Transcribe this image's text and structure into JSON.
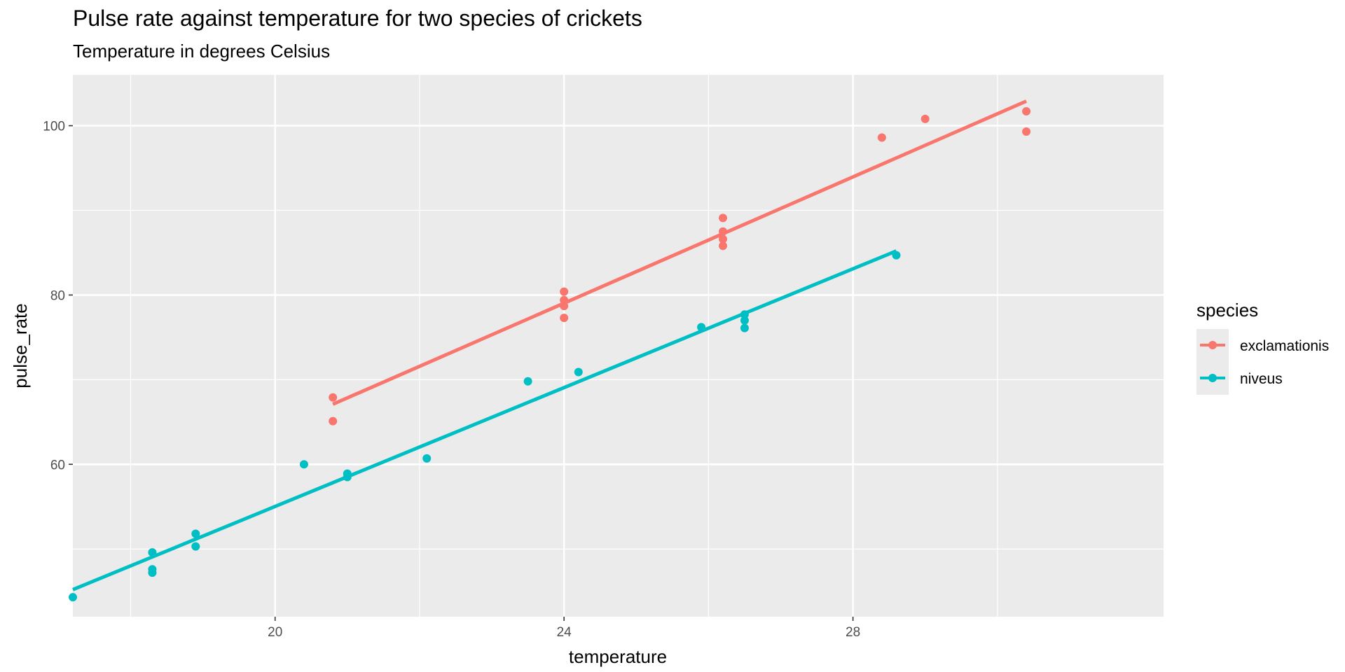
{
  "chart_data": {
    "type": "scatter",
    "title": "Pulse rate against temperature for two species of crickets",
    "subtitle": "Temperature in degrees Celsius",
    "xlabel": "temperature",
    "ylabel": "pulse_rate",
    "xlim": [
      17.2,
      32.3
    ],
    "ylim": [
      42,
      106
    ],
    "xticks": [
      20,
      24,
      28
    ],
    "yticks": [
      60,
      80,
      100
    ],
    "grid": true,
    "legend": {
      "title": "species",
      "position": "right"
    },
    "series": [
      {
        "name": "exclamationis",
        "color": "#F8766D",
        "points": [
          [
            20.8,
            67.9
          ],
          [
            20.8,
            65.1
          ],
          [
            24.0,
            77.3
          ],
          [
            24.0,
            78.7
          ],
          [
            24.0,
            79.4
          ],
          [
            24.0,
            80.4
          ],
          [
            26.2,
            85.8
          ],
          [
            26.2,
            86.6
          ],
          [
            26.2,
            87.5
          ],
          [
            26.2,
            89.1
          ],
          [
            28.4,
            98.6
          ],
          [
            29.0,
            100.8
          ],
          [
            30.4,
            99.3
          ],
          [
            30.4,
            101.7
          ]
        ],
        "fit": [
          [
            20.8,
            67.1
          ],
          [
            30.4,
            102.9
          ]
        ]
      },
      {
        "name": "niveus",
        "color": "#00BFC4",
        "points": [
          [
            17.2,
            44.3
          ],
          [
            18.3,
            47.2
          ],
          [
            18.3,
            47.6
          ],
          [
            18.3,
            49.6
          ],
          [
            18.9,
            50.3
          ],
          [
            18.9,
            51.8
          ],
          [
            20.4,
            60.0
          ],
          [
            21.0,
            58.5
          ],
          [
            21.0,
            58.9
          ],
          [
            22.1,
            60.7
          ],
          [
            23.5,
            69.8
          ],
          [
            24.2,
            70.9
          ],
          [
            25.9,
            76.2
          ],
          [
            26.5,
            76.1
          ],
          [
            26.5,
            77.0
          ],
          [
            26.5,
            77.7
          ],
          [
            28.6,
            84.7
          ]
        ],
        "fit": [
          [
            17.2,
            45.2
          ],
          [
            28.6,
            85.2
          ]
        ]
      }
    ]
  }
}
